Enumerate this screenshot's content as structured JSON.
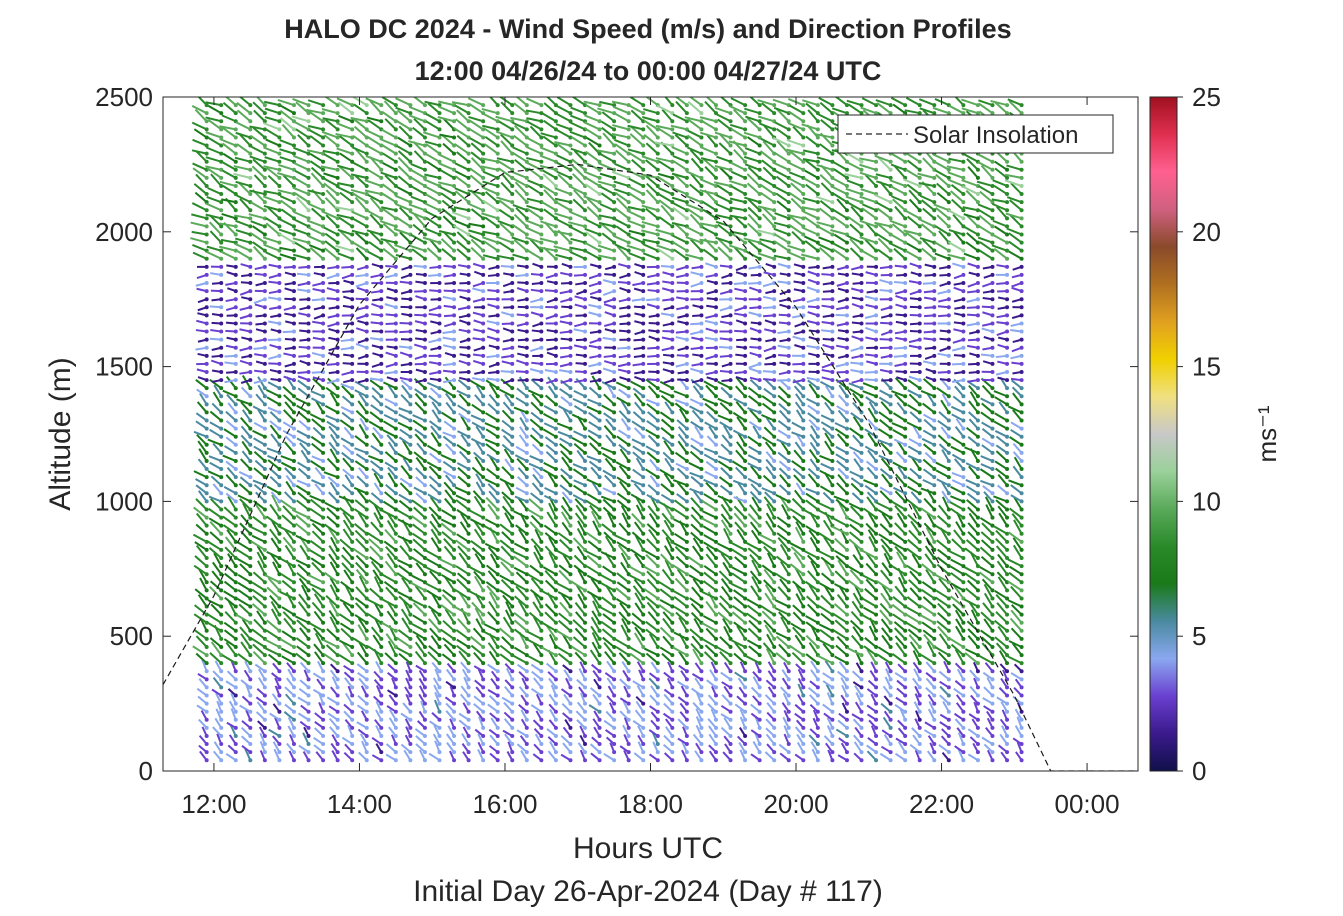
{
  "chart_data": {
    "type": "scatter",
    "title": "HALO DC 2024 - Wind Speed (m/s) and Direction Profiles",
    "subtitle": "12:00 04/26/24 to 00:00 04/27/24  UTC",
    "xlabel": "Hours UTC",
    "xlabel2": "Initial Day 26-Apr-2024 (Day # 117)",
    "ylabel": "Altitude (m)",
    "xlim": [
      11.3,
      24.7
    ],
    "ylim": [
      0,
      2500
    ],
    "x_ticks": [
      12,
      14,
      16,
      18,
      20,
      22,
      24
    ],
    "x_tick_labels": [
      "12:00",
      "14:00",
      "16:00",
      "18:00",
      "20:00",
      "22:00",
      "00:00"
    ],
    "y_ticks": [
      0,
      500,
      1000,
      1500,
      2000,
      2500
    ],
    "y_tick_labels": [
      "0",
      "500",
      "1000",
      "1500",
      "2000",
      "2500"
    ],
    "legend": {
      "label": "Solar Insolation",
      "placement": "top-right"
    },
    "colorbar": {
      "label": "ms⁻¹",
      "range": [
        0,
        25
      ],
      "ticks": [
        0,
        5,
        10,
        15,
        20,
        25
      ],
      "tick_labels": [
        "0",
        "5",
        "10",
        "15",
        "20",
        "25"
      ],
      "colors": [
        "#10104a",
        "#3a1a8c",
        "#6a40d0",
        "#8aa8f0",
        "#4a8aa0",
        "#1a7a1a",
        "#2a8a2a",
        "#5aaa5a",
        "#9ad09a",
        "#c8c8c8",
        "#f0e080",
        "#f0d000",
        "#e0a020",
        "#b07020",
        "#8a4a2a",
        "#d06080",
        "#ff6090",
        "#e03050",
        "#a01020"
      ]
    },
    "profile_times": [
      11.9,
      12.1,
      12.3,
      12.5,
      12.7,
      12.9,
      13.1,
      13.3,
      13.5,
      13.7,
      13.9,
      14.1,
      14.3,
      14.5,
      14.7,
      14.9,
      15.1,
      15.3,
      15.5,
      15.7,
      15.9,
      16.1,
      16.3,
      16.5,
      16.7,
      16.9,
      17.1,
      17.3,
      17.5,
      17.7,
      17.9,
      18.1,
      18.3,
      18.5,
      18.7,
      18.9,
      19.1,
      19.3,
      19.5,
      19.7,
      19.9,
      20.1,
      20.3,
      20.5,
      20.7,
      20.9,
      21.1,
      21.3,
      21.5,
      21.7,
      21.9,
      22.1,
      22.3,
      22.5,
      22.7,
      22.9,
      23.1
    ],
    "wind_profile_bands": [
      {
        "alt_range": [
          30,
          400
        ],
        "speed": 3.5,
        "dir_deg": 320
      },
      {
        "alt_range": [
          400,
          1000
        ],
        "speed": 8.0,
        "dir_deg": 315
      },
      {
        "alt_range": [
          1000,
          1450
        ],
        "speed": 6.0,
        "dir_deg": 310
      },
      {
        "alt_range": [
          1450,
          1900
        ],
        "speed": 2.5,
        "dir_deg": 270
      },
      {
        "alt_range": [
          1900,
          2500
        ],
        "speed": 9.0,
        "dir_deg": 300
      }
    ],
    "solar_insolation": {
      "x": [
        11.3,
        12,
        13,
        14,
        15,
        16,
        17,
        18,
        19,
        20,
        21,
        22,
        23,
        23.5,
        24,
        24.7
      ],
      "y": [
        320,
        650,
        1250,
        1730,
        2050,
        2220,
        2250,
        2210,
        2040,
        1720,
        1290,
        750,
        280,
        0,
        0,
        0
      ]
    }
  }
}
